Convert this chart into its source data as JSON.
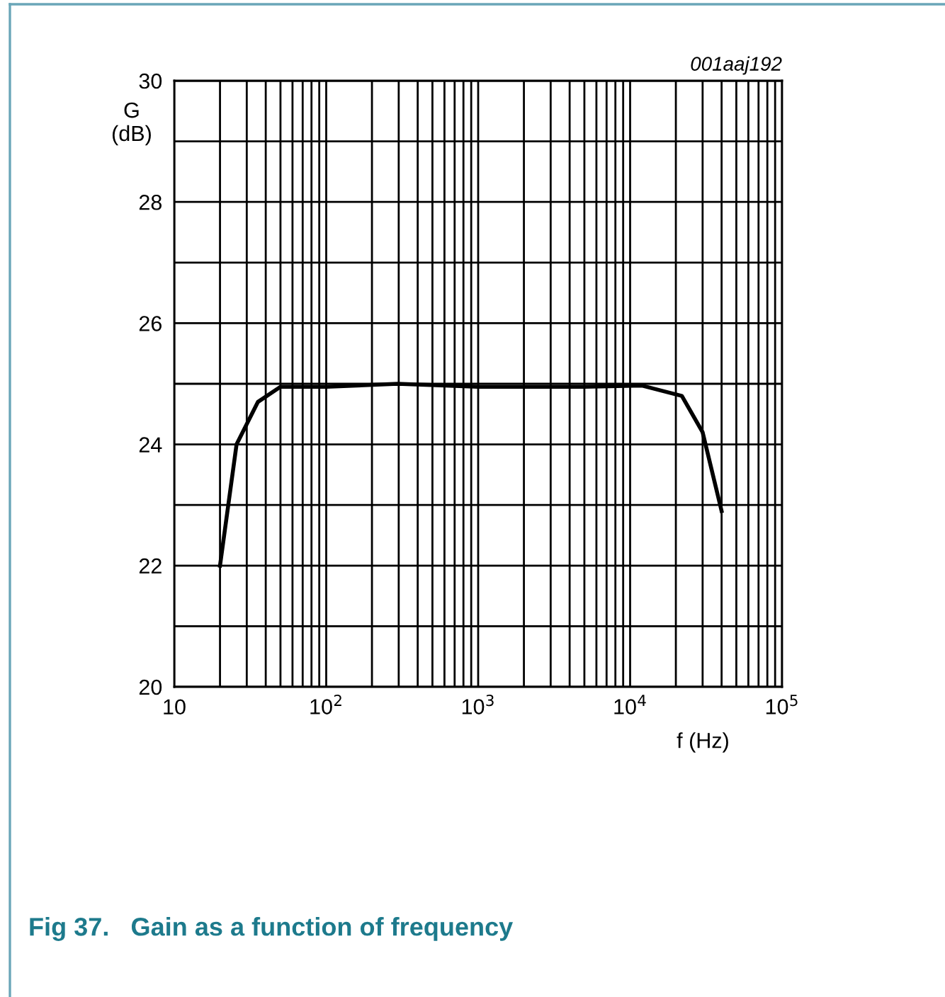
{
  "chart_data": {
    "type": "line",
    "ylabel": "G\n(dB)",
    "xlabel": "f (Hz)",
    "log": "x",
    "grid": true,
    "marker": "none",
    "line_style": "solid",
    "x": [
      20,
      25.7,
      35.5,
      50,
      100,
      295,
      1000,
      5000,
      12000,
      21900,
      30000,
      40000
    ],
    "series": [
      {
        "color": "#000000",
        "values": [
          22.0,
          24.0,
          24.7,
          24.95,
          24.95,
          25.0,
          24.95,
          24.95,
          24.97,
          24.8,
          24.2,
          22.9
        ]
      }
    ],
    "xlim": [
      10,
      100000
    ],
    "xticks": [
      10,
      {
        "value": 20,
        "label": null
      },
      {
        "value": 30,
        "label": null
      },
      {
        "value": 40,
        "label": null
      },
      {
        "value": 50,
        "label": null
      },
      {
        "value": 60,
        "label": null
      },
      {
        "value": 70,
        "label": null
      },
      {
        "value": 80,
        "label": null
      },
      {
        "value": 90,
        "label": null
      },
      {
        "value": 100,
        "label": "10$^{2}$"
      },
      {
        "value": 200,
        "label": null
      },
      {
        "value": 300,
        "label": null
      },
      {
        "value": 400,
        "label": null
      },
      {
        "value": 500,
        "label": null
      },
      {
        "value": 600,
        "label": null
      },
      {
        "value": 700,
        "label": null
      },
      {
        "value": 800,
        "label": null
      },
      {
        "value": 900,
        "label": null
      },
      {
        "value": 1000,
        "label": "10$^{3}$"
      },
      {
        "value": 2000,
        "label": null
      },
      {
        "value": 3000,
        "label": null
      },
      {
        "value": 4000,
        "label": null
      },
      {
        "value": 5000,
        "label": null
      },
      {
        "value": 6000,
        "label": null
      },
      {
        "value": 7000,
        "label": null
      },
      {
        "value": 8000,
        "label": null
      },
      {
        "value": 9000,
        "label": null
      },
      {
        "value": 10000,
        "label": "10$^{4}$"
      },
      {
        "value": 20000,
        "label": null
      },
      {
        "value": 30000,
        "label": null
      },
      {
        "value": 40000,
        "label": null
      },
      {
        "value": 50000,
        "label": null
      },
      {
        "value": 60000,
        "label": null
      },
      {
        "value": 70000,
        "label": null
      },
      {
        "value": 80000,
        "label": null
      },
      {
        "value": 90000,
        "label": null
      },
      {
        "value": 100000,
        "label": "10$^{5}$"
      }
    ],
    "ylim": [
      20,
      30
    ],
    "yticks": [
      20,
      {
        "value": 21,
        "label": null
      },
      22,
      {
        "value": 23,
        "label": null
      },
      24,
      {
        "value": 25,
        "label": null
      },
      26,
      {
        "value": 27,
        "label": null
      },
      28,
      {
        "value": 29,
        "label": null
      },
      30
    ],
    "annotations": [
      "001aaj192",
      "Fig 37.   Gain as a function of frequency"
    ]
  }
}
